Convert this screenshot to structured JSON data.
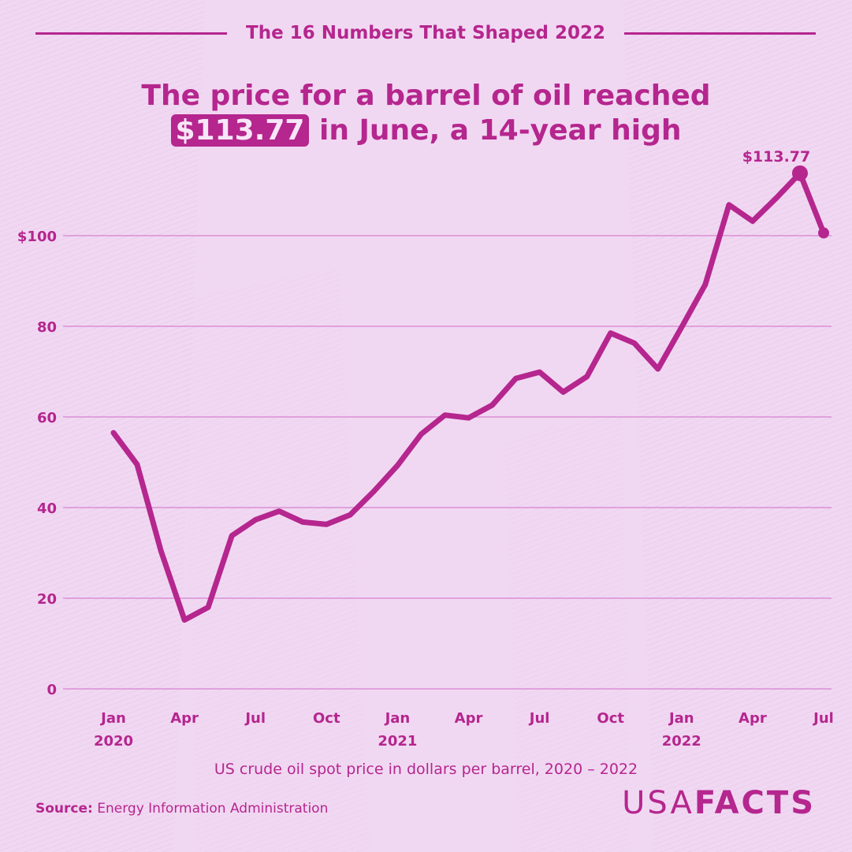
{
  "header": {
    "label": "The 16 Numbers That Shaped 2022"
  },
  "headline": {
    "highlight": "$113.77",
    "line1": "The price for a barrel of oil reached",
    "line2_rest": " in June, a 14-year high"
  },
  "subtitle": "US crude oil spot price in dollars per barrel, 2020 – 2022",
  "source": {
    "label": "Source:",
    "text": " Energy Information Administration"
  },
  "logo": {
    "part1": "USA",
    "part2": "FACTS"
  },
  "colors": {
    "accent": "#b5268e",
    "background": "#f1d8f2",
    "gridline": "#d98fd4"
  },
  "chart_data": {
    "type": "line",
    "x": [
      "Jan 2020",
      "Feb 2020",
      "Mar 2020",
      "Apr 2020",
      "May 2020",
      "Jun 2020",
      "Jul 2020",
      "Aug 2020",
      "Sep 2020",
      "Oct 2020",
      "Nov 2020",
      "Dec 2020",
      "Jan 2021",
      "Feb 2021",
      "Mar 2021",
      "Apr 2021",
      "May 2021",
      "Jun 2021",
      "Jul 2021",
      "Aug 2021",
      "Sep 2021",
      "Oct 2021",
      "Nov 2021",
      "Dec 2021",
      "Jan 2022",
      "Feb 2022",
      "Mar 2022",
      "Apr 2022",
      "May 2022",
      "Jun 2022",
      "Jul 2022"
    ],
    "series": [
      {
        "values": [
          56.5,
          49.5,
          30.5,
          15.2,
          18.0,
          33.8,
          37.3,
          39.2,
          36.8,
          36.3,
          38.4,
          43.6,
          49.3,
          56.2,
          60.4,
          59.8,
          62.6,
          68.5,
          69.9,
          65.5,
          68.9,
          78.5,
          76.3,
          70.6,
          79.8,
          89.2,
          106.8,
          103.2,
          108.3,
          113.77,
          100.6
        ]
      }
    ],
    "x_tick_labels": [
      {
        "index": 0,
        "month": "Jan",
        "year": "2020"
      },
      {
        "index": 3,
        "month": "Apr",
        "year": ""
      },
      {
        "index": 6,
        "month": "Jul",
        "year": ""
      },
      {
        "index": 9,
        "month": "Oct",
        "year": ""
      },
      {
        "index": 12,
        "month": "Jan",
        "year": "2021"
      },
      {
        "index": 15,
        "month": "Apr",
        "year": ""
      },
      {
        "index": 18,
        "month": "Jul",
        "year": ""
      },
      {
        "index": 21,
        "month": "Oct",
        "year": ""
      },
      {
        "index": 24,
        "month": "Jan",
        "year": "2022"
      },
      {
        "index": 27,
        "month": "Apr",
        "year": ""
      },
      {
        "index": 30,
        "month": "Jul",
        "year": ""
      }
    ],
    "y_ticks": [
      {
        "value": 0,
        "label": "0"
      },
      {
        "value": 20,
        "label": "20"
      },
      {
        "value": 40,
        "label": "40"
      },
      {
        "value": 60,
        "label": "60"
      },
      {
        "value": 80,
        "label": "80"
      },
      {
        "value": 100,
        "label": "$100"
      }
    ],
    "ylim": [
      0,
      120
    ],
    "grid": true,
    "annotation": {
      "index": 29,
      "label": "$113.77"
    },
    "end_marker_index": 30
  }
}
